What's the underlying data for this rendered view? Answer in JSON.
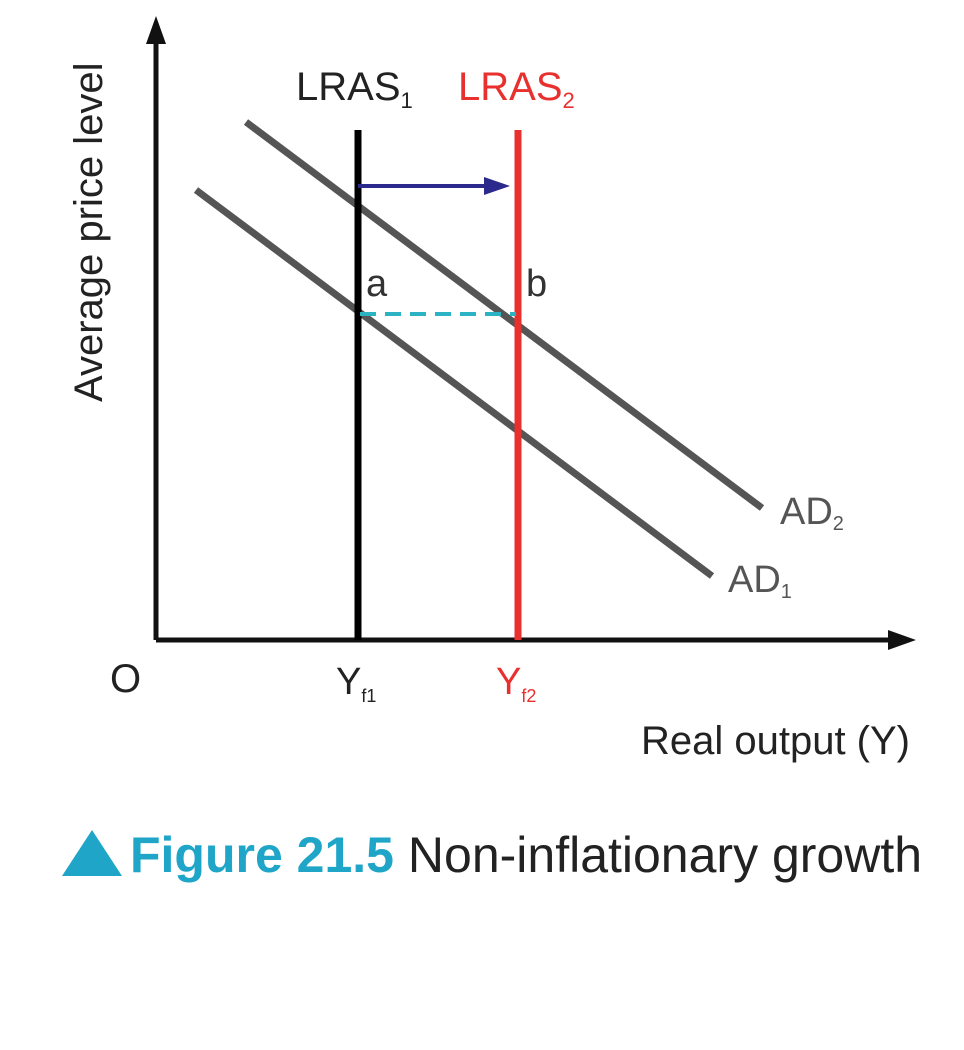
{
  "diagram": {
    "y_axis_label": "Average price level",
    "x_axis_label": "Real output (Y)",
    "origin_label": "O",
    "lras1": {
      "base": "LRAS",
      "sub": "1"
    },
    "lras2": {
      "base": "LRAS",
      "sub": "2"
    },
    "ad1": {
      "base": "AD",
      "sub": "1"
    },
    "ad2": {
      "base": "AD",
      "sub": "2"
    },
    "yf1": {
      "base": "Y",
      "sub": "f1"
    },
    "yf2": {
      "base": "Y",
      "sub": "f2"
    },
    "point_a": "a",
    "point_b": "b",
    "colors": {
      "axis": "#111111",
      "lras1": "#000000",
      "lras2": "#e8312f",
      "ad_curves": "#555555",
      "shift_arrow": "#2b2a8c",
      "dashed_line": "#2bb3c4",
      "caption_accent": "#1ea5c8"
    }
  },
  "caption": {
    "icon": "triangle-up-icon",
    "number": "Figure 21.5",
    "title": "Non-inflationary growth"
  }
}
